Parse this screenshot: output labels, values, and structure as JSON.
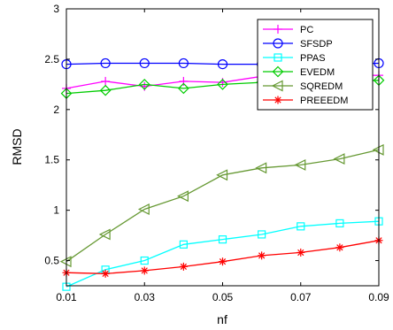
{
  "chart_data": {
    "type": "line",
    "title": "",
    "xlabel": "nf",
    "ylabel": "RMSD",
    "x": [
      0.01,
      0.02,
      0.03,
      0.04,
      0.05,
      0.06,
      0.07,
      0.08,
      0.09
    ],
    "xlim": [
      0.01,
      0.09
    ],
    "ylim": [
      0.25,
      3
    ],
    "xticks": [
      "0.01",
      "0.03",
      "0.05",
      "0.07",
      "0.09"
    ],
    "yticks": [
      "0.5",
      "1",
      "1.5",
      "2",
      "2.5",
      "3"
    ],
    "grid": false,
    "legend_position": "top-right",
    "series": [
      {
        "name": "PC",
        "color": "#ff00ff",
        "marker": "plus",
        "values": [
          2.21,
          2.28,
          2.23,
          2.28,
          2.27,
          2.33,
          2.33,
          2.34,
          2.34
        ]
      },
      {
        "name": "SFSDP",
        "color": "#0000ff",
        "marker": "circle",
        "values": [
          2.45,
          2.46,
          2.46,
          2.46,
          2.45,
          2.45,
          2.45,
          2.45,
          2.46
        ]
      },
      {
        "name": "PPAS",
        "color": "#00ffff",
        "marker": "square",
        "values": [
          0.24,
          0.41,
          0.5,
          0.66,
          0.71,
          0.76,
          0.84,
          0.87,
          0.89
        ]
      },
      {
        "name": "EVEDM",
        "color": "#00cc00",
        "marker": "diamond",
        "values": [
          2.16,
          2.19,
          2.25,
          2.21,
          2.25,
          2.27,
          2.27,
          2.28,
          2.29
        ]
      },
      {
        "name": "SQREDM",
        "color": "#669933",
        "marker": "triangle-left",
        "values": [
          0.49,
          0.76,
          1.01,
          1.14,
          1.35,
          1.42,
          1.45,
          1.51,
          1.6
        ]
      },
      {
        "name": "PREEEDM",
        "color": "#ff0000",
        "marker": "asterisk",
        "values": [
          0.38,
          0.37,
          0.4,
          0.44,
          0.49,
          0.55,
          0.58,
          0.63,
          0.7
        ]
      }
    ]
  }
}
